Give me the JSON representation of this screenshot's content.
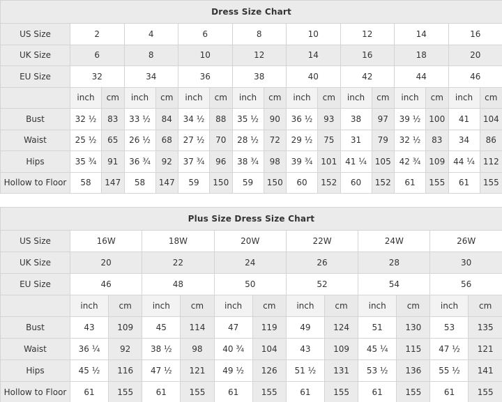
{
  "colors": {
    "page_bg": "#ffffff",
    "gray": "#ebebeb",
    "unit_inch_bg": "#f3f3f3",
    "unit_cm_bg": "#e9e9e9",
    "border": "#d4d4d4",
    "text": "#333333",
    "title_text": "#000000"
  },
  "unit_labels": {
    "inch": "inch",
    "cm": "cm"
  },
  "tables": [
    {
      "title": "Dress Size Chart",
      "size_rows": [
        {
          "label": "US Size",
          "values": [
            "2",
            "4",
            "6",
            "8",
            "10",
            "12",
            "14",
            "16"
          ]
        },
        {
          "label": "UK Size",
          "values": [
            "6",
            "8",
            "10",
            "12",
            "14",
            "16",
            "18",
            "20"
          ]
        },
        {
          "label": "EU Size",
          "values": [
            "32",
            "34",
            "36",
            "38",
            "40",
            "42",
            "44",
            "46"
          ]
        }
      ],
      "measure_rows": [
        {
          "label": "Bust",
          "pairs": [
            [
              "32 ½",
              "83"
            ],
            [
              "33 ½",
              "84"
            ],
            [
              "34 ½",
              "88"
            ],
            [
              "35 ½",
              "90"
            ],
            [
              "36 ½",
              "93"
            ],
            [
              "38",
              "97"
            ],
            [
              "39 ½",
              "100"
            ],
            [
              "41",
              "104"
            ]
          ]
        },
        {
          "label": "Waist",
          "pairs": [
            [
              "25 ½",
              "65"
            ],
            [
              "26 ½",
              "68"
            ],
            [
              "27 ½",
              "70"
            ],
            [
              "28 ½",
              "72"
            ],
            [
              "29 ½",
              "75"
            ],
            [
              "31",
              "79"
            ],
            [
              "32 ½",
              "83"
            ],
            [
              "34",
              "86"
            ]
          ]
        },
        {
          "label": "Hips",
          "pairs": [
            [
              "35 ¾",
              "91"
            ],
            [
              "36 ¾",
              "92"
            ],
            [
              "37 ¾",
              "96"
            ],
            [
              "38 ¾",
              "98"
            ],
            [
              "39 ¾",
              "101"
            ],
            [
              "41 ¼",
              "105"
            ],
            [
              "42 ¾",
              "109"
            ],
            [
              "44 ¼",
              "112"
            ]
          ]
        },
        {
          "label": "Hollow to Floor",
          "pairs": [
            [
              "58",
              "147"
            ],
            [
              "58",
              "147"
            ],
            [
              "59",
              "150"
            ],
            [
              "59",
              "150"
            ],
            [
              "60",
              "152"
            ],
            [
              "60",
              "152"
            ],
            [
              "61",
              "155"
            ],
            [
              "61",
              "155"
            ]
          ]
        }
      ]
    },
    {
      "title": "Plus Size Dress Size Chart",
      "size_rows": [
        {
          "label": "US Size",
          "values": [
            "16W",
            "18W",
            "20W",
            "22W",
            "24W",
            "26W"
          ]
        },
        {
          "label": "UK Size",
          "values": [
            "20",
            "22",
            "24",
            "26",
            "28",
            "30"
          ]
        },
        {
          "label": "EU Size",
          "values": [
            "46",
            "48",
            "50",
            "52",
            "54",
            "56"
          ]
        }
      ],
      "measure_rows": [
        {
          "label": "Bust",
          "pairs": [
            [
              "43",
              "109"
            ],
            [
              "45",
              "114"
            ],
            [
              "47",
              "119"
            ],
            [
              "49",
              "124"
            ],
            [
              "51",
              "130"
            ],
            [
              "53",
              "135"
            ]
          ]
        },
        {
          "label": "Waist",
          "pairs": [
            [
              "36 ¼",
              "92"
            ],
            [
              "38 ½",
              "98"
            ],
            [
              "40 ¾",
              "104"
            ],
            [
              "43",
              "109"
            ],
            [
              "45 ¼",
              "115"
            ],
            [
              "47 ½",
              "121"
            ]
          ]
        },
        {
          "label": "Hips",
          "pairs": [
            [
              "45 ½",
              "116"
            ],
            [
              "47 ½",
              "121"
            ],
            [
              "49 ½",
              "126"
            ],
            [
              "51 ½",
              "131"
            ],
            [
              "53 ½",
              "136"
            ],
            [
              "55 ½",
              "141"
            ]
          ]
        },
        {
          "label": "Hollow to Floor",
          "pairs": [
            [
              "61",
              "155"
            ],
            [
              "61",
              "155"
            ],
            [
              "61",
              "155"
            ],
            [
              "61",
              "155"
            ],
            [
              "61",
              "155"
            ],
            [
              "61",
              "155"
            ]
          ]
        }
      ]
    }
  ]
}
